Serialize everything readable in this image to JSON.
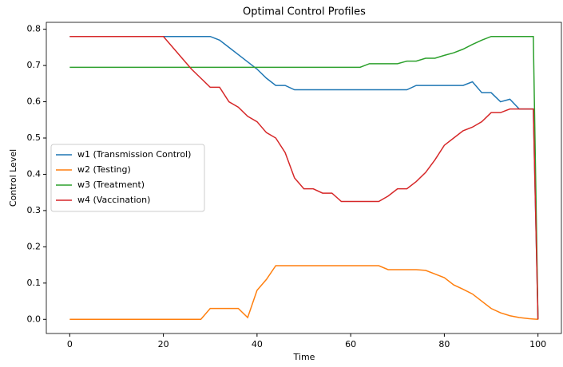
{
  "chart_data": {
    "type": "line",
    "title": "Optimal Control Profiles",
    "x_label": "Time",
    "y_label": "Control Level",
    "x": [
      0,
      2,
      4,
      6,
      8,
      10,
      12,
      14,
      16,
      18,
      20,
      22,
      24,
      26,
      28,
      30,
      32,
      34,
      36,
      38,
      40,
      42,
      44,
      46,
      48,
      50,
      52,
      54,
      56,
      58,
      60,
      62,
      64,
      66,
      68,
      70,
      72,
      74,
      76,
      78,
      80,
      82,
      84,
      86,
      88,
      90,
      92,
      94,
      96,
      98,
      99,
      100
    ],
    "series": [
      {
        "name": "w1 (Transmission Control)",
        "color": "#1f77b4",
        "values": [
          0.78,
          0.78,
          0.78,
          0.78,
          0.78,
          0.78,
          0.78,
          0.78,
          0.78,
          0.78,
          0.78,
          0.78,
          0.78,
          0.78,
          0.78,
          0.78,
          0.77,
          0.75,
          0.73,
          0.71,
          0.69,
          0.665,
          0.645,
          0.645,
          0.633,
          0.633,
          0.633,
          0.633,
          0.633,
          0.633,
          0.633,
          0.633,
          0.633,
          0.633,
          0.633,
          0.633,
          0.633,
          0.645,
          0.645,
          0.645,
          0.645,
          0.645,
          0.645,
          0.655,
          0.625,
          0.625,
          0.6,
          0.607,
          0.58,
          0.58,
          0.58,
          0
        ]
      },
      {
        "name": "w2 (Testing)",
        "color": "#ff7f0e",
        "values": [
          0,
          0,
          0,
          0,
          0,
          0,
          0,
          0,
          0,
          0,
          0,
          0,
          0,
          0,
          0,
          0.03,
          0.03,
          0.03,
          0.03,
          0.005,
          0.08,
          0.11,
          0.148,
          0.148,
          0.148,
          0.148,
          0.148,
          0.148,
          0.148,
          0.148,
          0.148,
          0.148,
          0.148,
          0.148,
          0.137,
          0.137,
          0.137,
          0.137,
          0.135,
          0.125,
          0.115,
          0.095,
          0.083,
          0.07,
          0.05,
          0.03,
          0.018,
          0.01,
          0.005,
          0.002,
          0.001,
          0
        ]
      },
      {
        "name": "w3 (Treatment)",
        "color": "#2ca02c",
        "values": [
          0.695,
          0.695,
          0.695,
          0.695,
          0.695,
          0.695,
          0.695,
          0.695,
          0.695,
          0.695,
          0.695,
          0.695,
          0.695,
          0.695,
          0.695,
          0.695,
          0.695,
          0.695,
          0.695,
          0.695,
          0.695,
          0.695,
          0.695,
          0.695,
          0.695,
          0.695,
          0.695,
          0.695,
          0.695,
          0.695,
          0.695,
          0.695,
          0.705,
          0.705,
          0.705,
          0.705,
          0.712,
          0.712,
          0.72,
          0.72,
          0.728,
          0.735,
          0.745,
          0.758,
          0.77,
          0.78,
          0.78,
          0.78,
          0.78,
          0.78,
          0.78,
          0
        ]
      },
      {
        "name": "w4 (Vaccination)",
        "color": "#d62728",
        "values": [
          0.78,
          0.78,
          0.78,
          0.78,
          0.78,
          0.78,
          0.78,
          0.78,
          0.78,
          0.78,
          0.78,
          0.75,
          0.72,
          0.69,
          0.665,
          0.64,
          0.64,
          0.6,
          0.585,
          0.56,
          0.545,
          0.515,
          0.5,
          0.46,
          0.39,
          0.36,
          0.36,
          0.348,
          0.348,
          0.325,
          0.325,
          0.325,
          0.325,
          0.325,
          0.34,
          0.36,
          0.36,
          0.38,
          0.405,
          0.44,
          0.48,
          0.5,
          0.52,
          0.53,
          0.545,
          0.57,
          0.57,
          0.58,
          0.58,
          0.58,
          0.58,
          0
        ]
      }
    ],
    "xlim": [
      -5,
      105
    ],
    "xticks": [
      0,
      20,
      40,
      60,
      80,
      100
    ],
    "ylim": [
      -0.039,
      0.819
    ],
    "yticks": [
      {
        "value": 0,
        "label": "0.0"
      },
      0.1,
      0.2,
      0.3,
      0.4,
      0.5,
      0.6,
      0.7,
      0.8
    ],
    "grid": false,
    "legend": "center left"
  }
}
